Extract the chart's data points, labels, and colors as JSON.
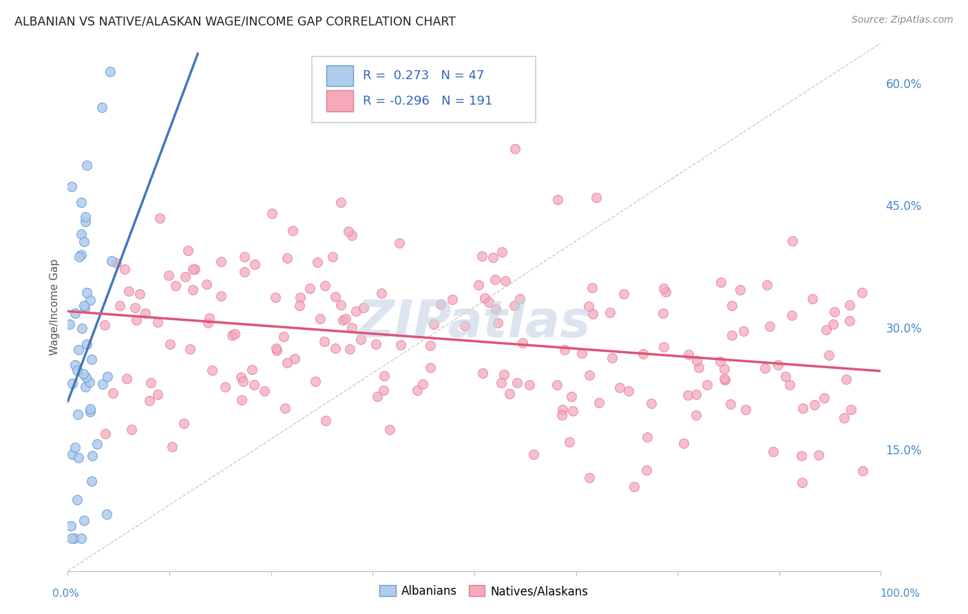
{
  "title": "ALBANIAN VS NATIVE/ALASKAN WAGE/INCOME GAP CORRELATION CHART",
  "source": "Source: ZipAtlas.com",
  "ylabel": "Wage/Income Gap",
  "r1": 0.273,
  "n1": 47,
  "r2": -0.296,
  "n2": 191,
  "legend_label1": "Albanians",
  "legend_label2": "Natives/Alaskans",
  "albanian_face": "#b0ccee",
  "albanian_edge": "#6699cc",
  "native_face": "#f5aaba",
  "native_edge": "#e07898",
  "albanian_line": "#4477bb",
  "native_line": "#dd5577",
  "diagonal_color": "#cccccc",
  "watermark_color": "#c5d5e5",
  "background_color": "#ffffff",
  "grid_color": "#e8e8e8",
  "ytick_color": "#4488cc",
  "title_color": "#222222",
  "source_color": "#888888",
  "legend_text_color": "#3366bb",
  "legend_border": "#cccccc"
}
